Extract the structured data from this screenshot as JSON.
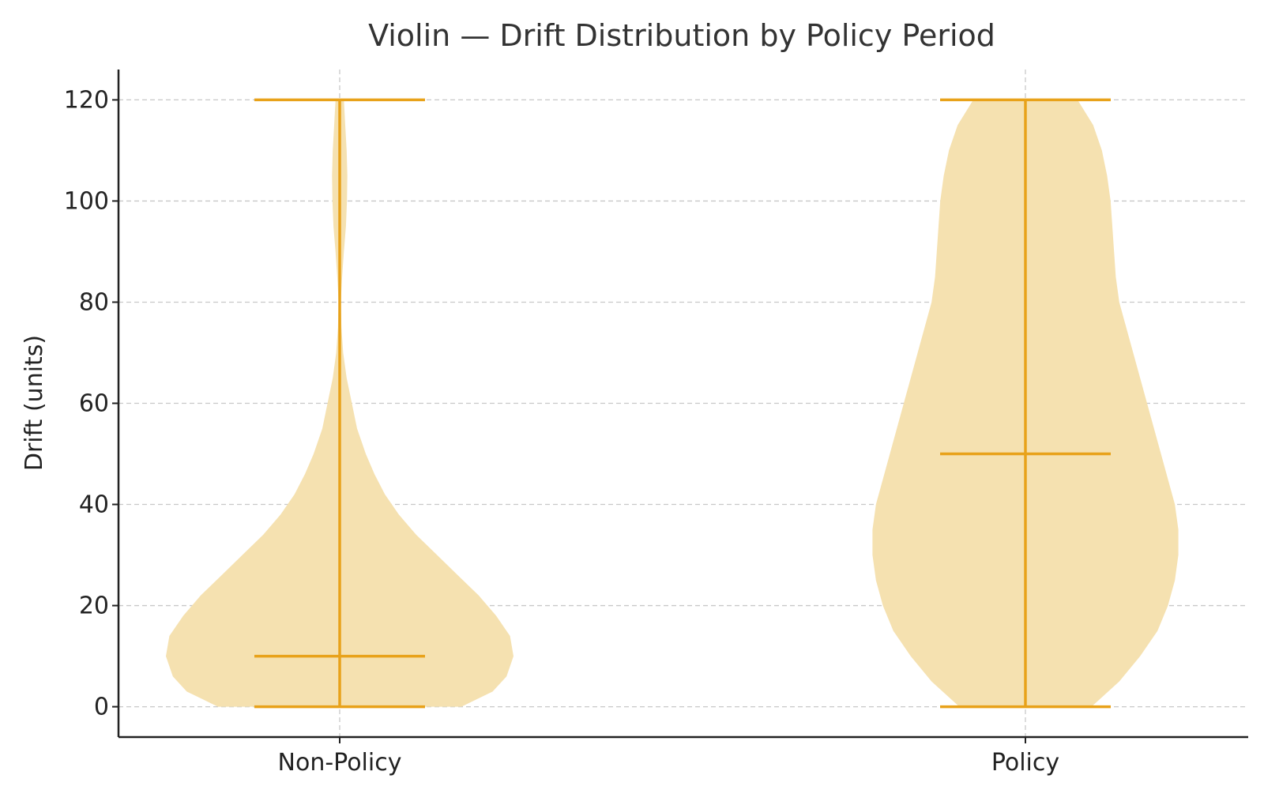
{
  "chart_data": {
    "type": "violin",
    "title": "Violin — Drift Distribution by Policy Period",
    "xlabel": "",
    "ylabel": "Drift (units)",
    "categories": [
      "Non-Policy",
      "Policy"
    ],
    "ylim": [
      -6,
      126
    ],
    "yticks": [
      0,
      20,
      40,
      60,
      80,
      100,
      120
    ],
    "grid": true,
    "series": [
      {
        "category": "Non-Policy",
        "min": 0,
        "max": 120,
        "median": 10,
        "density": [
          [
            0,
            0.35
          ],
          [
            3,
            0.44
          ],
          [
            6,
            0.48
          ],
          [
            10,
            0.5
          ],
          [
            14,
            0.49
          ],
          [
            18,
            0.45
          ],
          [
            22,
            0.4
          ],
          [
            26,
            0.34
          ],
          [
            30,
            0.28
          ],
          [
            34,
            0.22
          ],
          [
            38,
            0.17
          ],
          [
            42,
            0.13
          ],
          [
            46,
            0.1
          ],
          [
            50,
            0.075
          ],
          [
            55,
            0.05
          ],
          [
            60,
            0.035
          ],
          [
            65,
            0.02
          ],
          [
            70,
            0.01
          ],
          [
            75,
            0.005
          ],
          [
            80,
            0.003
          ],
          [
            85,
            0.007
          ],
          [
            90,
            0.012
          ],
          [
            95,
            0.018
          ],
          [
            100,
            0.021
          ],
          [
            105,
            0.022
          ],
          [
            110,
            0.02
          ],
          [
            115,
            0.016
          ],
          [
            120,
            0.012
          ]
        ]
      },
      {
        "category": "Policy",
        "min": 0,
        "max": 120,
        "median": 50,
        "density": [
          [
            0,
            0.19
          ],
          [
            5,
            0.27
          ],
          [
            10,
            0.33
          ],
          [
            15,
            0.38
          ],
          [
            20,
            0.41
          ],
          [
            25,
            0.43
          ],
          [
            30,
            0.44
          ],
          [
            35,
            0.44
          ],
          [
            40,
            0.43
          ],
          [
            45,
            0.41
          ],
          [
            50,
            0.39
          ],
          [
            55,
            0.37
          ],
          [
            60,
            0.35
          ],
          [
            65,
            0.33
          ],
          [
            70,
            0.31
          ],
          [
            75,
            0.29
          ],
          [
            80,
            0.27
          ],
          [
            85,
            0.26
          ],
          [
            90,
            0.255
          ],
          [
            95,
            0.25
          ],
          [
            100,
            0.245
          ],
          [
            105,
            0.235
          ],
          [
            110,
            0.22
          ],
          [
            115,
            0.195
          ],
          [
            120,
            0.15
          ]
        ]
      }
    ],
    "colors": {
      "body": "#f5e1b0",
      "lines": "#e8a21a",
      "grid": "#c8c8c8",
      "axis": "#222222"
    }
  }
}
